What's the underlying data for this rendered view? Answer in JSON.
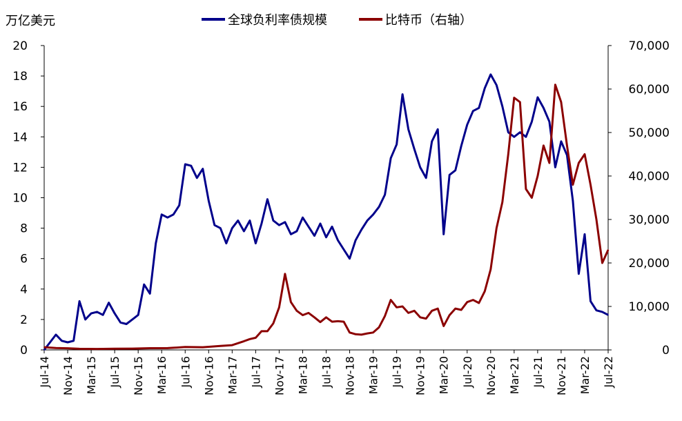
{
  "chart_data": {
    "type": "line",
    "y_left_label": "万亿美元",
    "y_left_range": [
      0,
      20
    ],
    "y_left_ticks": [
      "0",
      "2",
      "4",
      "6",
      "8",
      "10",
      "12",
      "14",
      "16",
      "18",
      "20"
    ],
    "y_right_range": [
      0,
      70000
    ],
    "y_right_ticks": [
      "0",
      "10,000",
      "20,000",
      "30,000",
      "40,000",
      "50,000",
      "60,000",
      "70,000"
    ],
    "x_ticks": [
      "Jul-14",
      "Nov-14",
      "Mar-15",
      "Jul-15",
      "Nov-15",
      "Mar-16",
      "Jul-16",
      "Nov-16",
      "Mar-17",
      "Jul-17",
      "Nov-17",
      "Mar-18",
      "Jul-18",
      "Nov-18",
      "Mar-19",
      "Jul-19",
      "Nov-19",
      "Mar-20",
      "Jul-20",
      "Nov-20",
      "Mar-21",
      "Jul-21",
      "Nov-21",
      "Mar-22",
      "Jul-22"
    ],
    "legend_position": "top",
    "grid": false,
    "series": [
      {
        "name": "全球负利率债规模",
        "axis": "left",
        "color": "#00008B",
        "points": [
          [
            "Jul-14",
            0.0
          ],
          [
            "Aug-14",
            0.5
          ],
          [
            "Sep-14",
            1.0
          ],
          [
            "Oct-14",
            0.6
          ],
          [
            "Nov-14",
            0.5
          ],
          [
            "Dec-14",
            0.6
          ],
          [
            "Jan-15",
            3.2
          ],
          [
            "Feb-15",
            2.0
          ],
          [
            "Mar-15",
            2.4
          ],
          [
            "Apr-15",
            2.5
          ],
          [
            "May-15",
            2.3
          ],
          [
            "Jun-15",
            3.1
          ],
          [
            "Jul-15",
            2.4
          ],
          [
            "Aug-15",
            1.8
          ],
          [
            "Sep-15",
            1.7
          ],
          [
            "Oct-15",
            2.0
          ],
          [
            "Nov-15",
            2.3
          ],
          [
            "Dec-15",
            4.3
          ],
          [
            "Jan-16",
            3.7
          ],
          [
            "Feb-16",
            7.0
          ],
          [
            "Mar-16",
            8.9
          ],
          [
            "Apr-16",
            8.7
          ],
          [
            "May-16",
            8.9
          ],
          [
            "Jun-16",
            9.5
          ],
          [
            "Jul-16",
            12.2
          ],
          [
            "Aug-16",
            12.1
          ],
          [
            "Sep-16",
            11.3
          ],
          [
            "Oct-16",
            11.9
          ],
          [
            "Nov-16",
            9.8
          ],
          [
            "Dec-16",
            8.2
          ],
          [
            "Jan-17",
            8.0
          ],
          [
            "Feb-17",
            7.0
          ],
          [
            "Mar-17",
            8.0
          ],
          [
            "Apr-17",
            8.5
          ],
          [
            "May-17",
            7.8
          ],
          [
            "Jun-17",
            8.5
          ],
          [
            "Jul-17",
            7.0
          ],
          [
            "Aug-17",
            8.3
          ],
          [
            "Sep-17",
            9.9
          ],
          [
            "Oct-17",
            8.5
          ],
          [
            "Nov-17",
            8.2
          ],
          [
            "Dec-17",
            8.4
          ],
          [
            "Jan-18",
            7.6
          ],
          [
            "Feb-18",
            7.8
          ],
          [
            "Mar-18",
            8.7
          ],
          [
            "Apr-18",
            8.1
          ],
          [
            "May-18",
            7.5
          ],
          [
            "Jun-18",
            8.3
          ],
          [
            "Jul-18",
            7.4
          ],
          [
            "Aug-18",
            8.1
          ],
          [
            "Sep-18",
            7.2
          ],
          [
            "Oct-18",
            6.6
          ],
          [
            "Nov-18",
            6.0
          ],
          [
            "Dec-18",
            7.2
          ],
          [
            "Jan-19",
            7.9
          ],
          [
            "Feb-19",
            8.5
          ],
          [
            "Mar-19",
            8.9
          ],
          [
            "Apr-19",
            9.4
          ],
          [
            "May-19",
            10.2
          ],
          [
            "Jun-19",
            12.6
          ],
          [
            "Jul-19",
            13.5
          ],
          [
            "Aug-19",
            16.8
          ],
          [
            "Sep-19",
            14.5
          ],
          [
            "Oct-19",
            13.2
          ],
          [
            "Nov-19",
            12.0
          ],
          [
            "Dec-19",
            11.3
          ],
          [
            "Jan-20",
            13.7
          ],
          [
            "Feb-20",
            14.5
          ],
          [
            "Mar-20",
            7.6
          ],
          [
            "Apr-20",
            11.5
          ],
          [
            "May-20",
            11.8
          ],
          [
            "Jun-20",
            13.4
          ],
          [
            "Jul-20",
            14.8
          ],
          [
            "Aug-20",
            15.7
          ],
          [
            "Sep-20",
            15.9
          ],
          [
            "Oct-20",
            17.2
          ],
          [
            "Nov-20",
            18.1
          ],
          [
            "Dec-20",
            17.4
          ],
          [
            "Jan-21",
            16.0
          ],
          [
            "Feb-21",
            14.3
          ],
          [
            "Mar-21",
            14.0
          ],
          [
            "Apr-21",
            14.3
          ],
          [
            "May-21",
            14.0
          ],
          [
            "Jun-21",
            15.0
          ],
          [
            "Jul-21",
            16.6
          ],
          [
            "Aug-21",
            15.9
          ],
          [
            "Sep-21",
            15.0
          ],
          [
            "Oct-21",
            12.0
          ],
          [
            "Nov-21",
            13.7
          ],
          [
            "Dec-21",
            12.8
          ],
          [
            "Jan-22",
            9.8
          ],
          [
            "Feb-22",
            5.0
          ],
          [
            "Mar-22",
            7.6
          ],
          [
            "Apr-22",
            3.2
          ],
          [
            "May-22",
            2.6
          ],
          [
            "Jun-22",
            2.5
          ],
          [
            "Jul-22",
            2.3
          ]
        ]
      },
      {
        "name": "比特币（右轴）",
        "axis": "right",
        "color": "#8B0000",
        "points": [
          [
            "Jul-14",
            620
          ],
          [
            "Sep-14",
            450
          ],
          [
            "Nov-14",
            380
          ],
          [
            "Jan-15",
            250
          ],
          [
            "Apr-15",
            230
          ],
          [
            "Jul-15",
            280
          ],
          [
            "Oct-15",
            300
          ],
          [
            "Jan-16",
            400
          ],
          [
            "Apr-16",
            420
          ],
          [
            "Jul-16",
            660
          ],
          [
            "Oct-16",
            620
          ],
          [
            "Jan-17",
            900
          ],
          [
            "Mar-17",
            1100
          ],
          [
            "May-17",
            2000
          ],
          [
            "Jun-17",
            2500
          ],
          [
            "Jul-17",
            2800
          ],
          [
            "Aug-17",
            4300
          ],
          [
            "Sep-17",
            4300
          ],
          [
            "Oct-17",
            6100
          ],
          [
            "Nov-17",
            9800
          ],
          [
            "Dec-17",
            17500
          ],
          [
            "Jan-18",
            11000
          ],
          [
            "Feb-18",
            9000
          ],
          [
            "Mar-18",
            8000
          ],
          [
            "Apr-18",
            8500
          ],
          [
            "May-18",
            7500
          ],
          [
            "Jun-18",
            6400
          ],
          [
            "Jul-18",
            7500
          ],
          [
            "Aug-18",
            6500
          ],
          [
            "Sep-18",
            6600
          ],
          [
            "Oct-18",
            6500
          ],
          [
            "Nov-18",
            4000
          ],
          [
            "Dec-18",
            3600
          ],
          [
            "Jan-19",
            3500
          ],
          [
            "Feb-19",
            3800
          ],
          [
            "Mar-19",
            4000
          ],
          [
            "Apr-19",
            5200
          ],
          [
            "May-19",
            7800
          ],
          [
            "Jun-19",
            11500
          ],
          [
            "Jul-19",
            9800
          ],
          [
            "Aug-19",
            10000
          ],
          [
            "Sep-19",
            8500
          ],
          [
            "Oct-19",
            9000
          ],
          [
            "Nov-19",
            7500
          ],
          [
            "Dec-19",
            7200
          ],
          [
            "Jan-20",
            9000
          ],
          [
            "Feb-20",
            9500
          ],
          [
            "Mar-20",
            5500
          ],
          [
            "Apr-20",
            8000
          ],
          [
            "May-20",
            9500
          ],
          [
            "Jun-20",
            9200
          ],
          [
            "Jul-20",
            11000
          ],
          [
            "Aug-20",
            11500
          ],
          [
            "Sep-20",
            10800
          ],
          [
            "Oct-20",
            13500
          ],
          [
            "Nov-20",
            18500
          ],
          [
            "Dec-20",
            28000
          ],
          [
            "Jan-21",
            34000
          ],
          [
            "Feb-21",
            45000
          ],
          [
            "Mar-21",
            58000
          ],
          [
            "Apr-21",
            57000
          ],
          [
            "May-21",
            37000
          ],
          [
            "Jun-21",
            35000
          ],
          [
            "Jul-21",
            40000
          ],
          [
            "Aug-21",
            47000
          ],
          [
            "Sep-21",
            43000
          ],
          [
            "Oct-21",
            61000
          ],
          [
            "Nov-21",
            57000
          ],
          [
            "Dec-21",
            47000
          ],
          [
            "Jan-22",
            38000
          ],
          [
            "Feb-22",
            43000
          ],
          [
            "Mar-22",
            45000
          ],
          [
            "Apr-22",
            38000
          ],
          [
            "May-22",
            30000
          ],
          [
            "Jun-22",
            20000
          ],
          [
            "Jul-22",
            23000
          ]
        ]
      }
    ]
  }
}
